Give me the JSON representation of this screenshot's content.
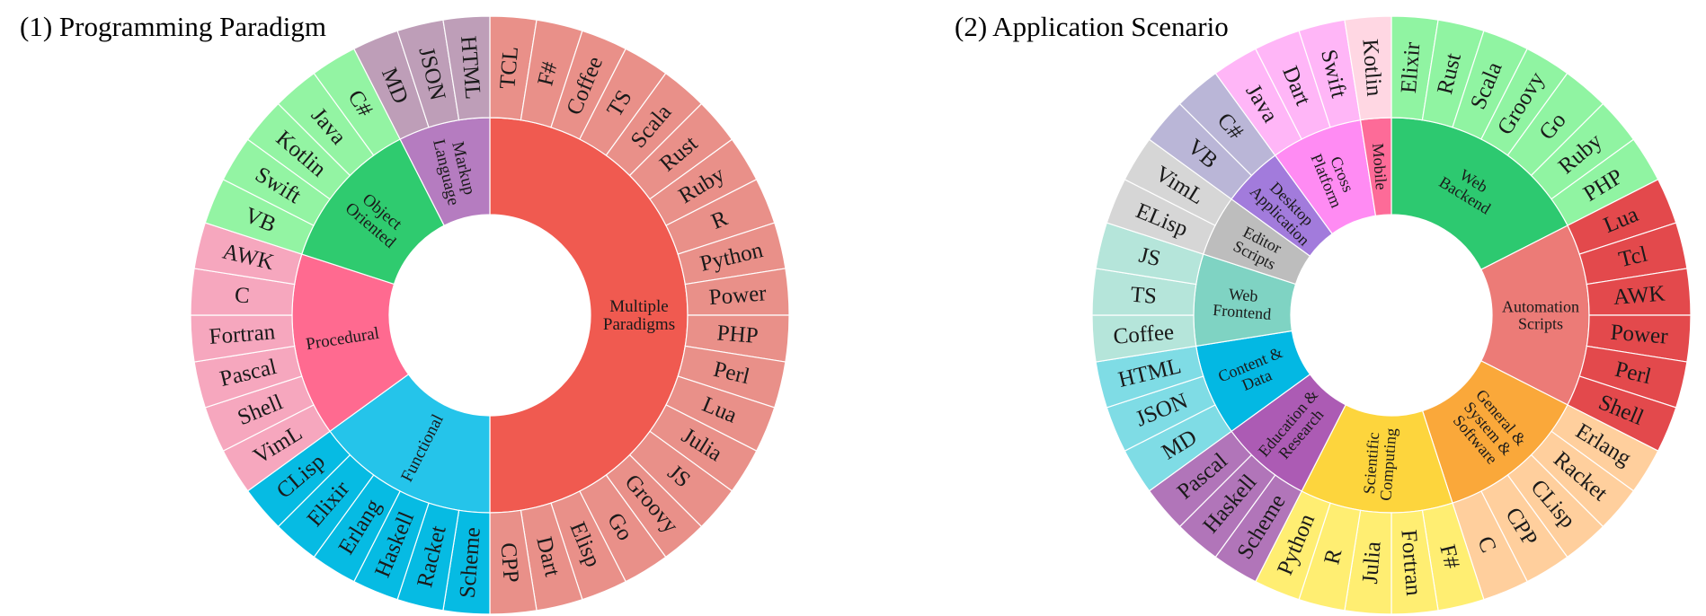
{
  "chart_data": [
    {
      "type": "sunburst",
      "title": "(1) Programming Paradigm",
      "categories": [
        {
          "name": "Multiple Paradigms",
          "color": "#F05A50",
          "outer_color": "#E99089",
          "items": [
            "TCL",
            "F#",
            "Coffee",
            "TS",
            "Scala",
            "Rust",
            "Ruby",
            "R",
            "Python",
            "Power",
            "PHP",
            "Perl",
            "Lua",
            "Julia",
            "JS",
            "Groovy",
            "Go",
            "Elisp",
            "Dart",
            "CPP"
          ]
        },
        {
          "name": "Functional",
          "color": "#25C4EA",
          "outer_color": "#06BBE3",
          "items": [
            "Scheme",
            "Racket",
            "Haskell",
            "Erlang",
            "Elixir",
            "CLisp"
          ]
        },
        {
          "name": "Procedural",
          "color": "#FF6A90",
          "outer_color": "#F6A7BE",
          "items": [
            "VimL",
            "Shell",
            "Pascal",
            "Fortran",
            "C",
            "AWK"
          ]
        },
        {
          "name": "Object Oriented",
          "color": "#2FCB6F",
          "outer_color": "#93F4A3",
          "items": [
            "VB",
            "Swift",
            "Kotlin",
            "Java",
            "C#"
          ]
        },
        {
          "name": "Markup Language",
          "color": "#B57CC0",
          "outer_color": "#BE9EB8",
          "items": [
            "MD",
            "JSON",
            "HTML"
          ]
        }
      ]
    },
    {
      "type": "sunburst",
      "title": "(2) Application Scenario",
      "categories": [
        {
          "name": "Web Backend",
          "color": "#2DC970",
          "outer_color": "#90F4A2",
          "items": [
            "Elixir",
            "Rust",
            "Scala",
            "Groovy",
            "Go",
            "Ruby",
            "PHP"
          ]
        },
        {
          "name": "Automation Scripts",
          "color": "#EC7B77",
          "outer_color": "#E3494C",
          "items": [
            "Lua",
            "Tcl",
            "AWK",
            "Power",
            "Perl",
            "Shell"
          ]
        },
        {
          "name": "General & System & Software",
          "color": "#FAA83A",
          "outer_color": "#FFCF9D",
          "items": [
            "Erlang",
            "Racket",
            "CLisp",
            "CPP",
            "C"
          ]
        },
        {
          "name": "Scientific Computing",
          "color": "#FDD53D",
          "outer_color": "#FFEE72",
          "items": [
            "F#",
            "Fortran",
            "Julia",
            "R",
            "Python"
          ]
        },
        {
          "name": "Education & Research",
          "color": "#AC5BB4",
          "outer_color": "#B175B9",
          "items": [
            "Scheme",
            "Haskell",
            "Pascal"
          ]
        },
        {
          "name": "Content & Data",
          "color": "#03B8E3",
          "outer_color": "#7FDCE5",
          "items": [
            "MD",
            "JSON",
            "HTML"
          ]
        },
        {
          "name": "Web Frontend",
          "color": "#7FD3C3",
          "outer_color": "#B5E5DA",
          "items": [
            "Coffee",
            "TS",
            "JS"
          ]
        },
        {
          "name": "Editor Scripts",
          "color": "#BDBDBD",
          "outer_color": "#D6D6D6",
          "items": [
            "ELisp",
            "VimL"
          ]
        },
        {
          "name": "Desktop Application",
          "color": "#A27BDC",
          "outer_color": "#BAB6D7",
          "items": [
            "VB",
            "C#"
          ]
        },
        {
          "name": "Cross Platform",
          "color": "#FF8BF3",
          "outer_color": "#FFB6F7",
          "items": [
            "Java",
            "Dart",
            "Swift"
          ]
        },
        {
          "name": "Mobile",
          "color": "#FD6B98",
          "outer_color": "#FFD7E3",
          "items": [
            "Kotlin"
          ]
        }
      ]
    }
  ]
}
